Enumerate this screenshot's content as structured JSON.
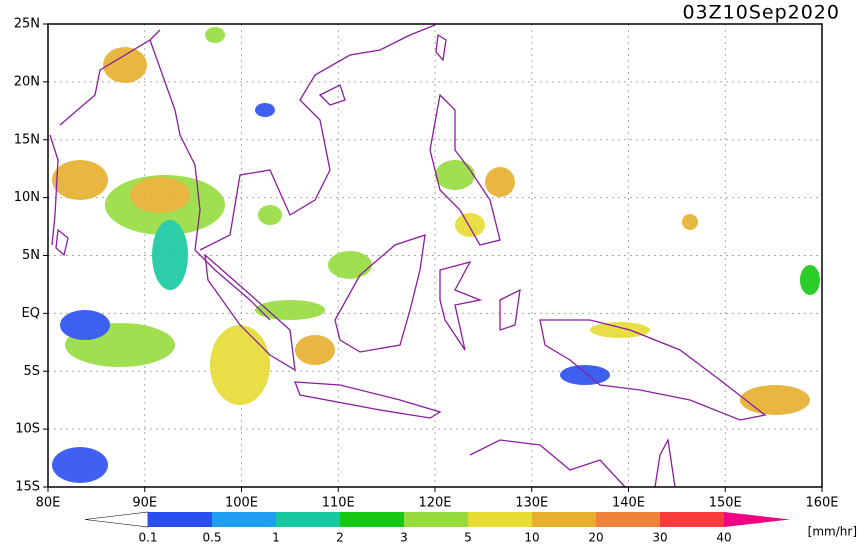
{
  "map": {
    "timestamp": "03Z10Sep2020",
    "x_axis": {
      "labels": [
        "80E",
        "90E",
        "100E",
        "110E",
        "120E",
        "130E",
        "140E",
        "150E",
        "160E"
      ]
    },
    "y_axis": {
      "labels": [
        "25N",
        "20N",
        "15N",
        "10N",
        "5N",
        "EQ",
        "5S",
        "10S",
        "15S"
      ]
    },
    "colorbar": {
      "levels": [
        0.1,
        0.5,
        1,
        2,
        3,
        5,
        10,
        20,
        30,
        40
      ],
      "colors": [
        "#ffffff",
        "#2a4ff0",
        "#1e9ff0",
        "#16c8a0",
        "#14c814",
        "#96dc3c",
        "#e6dc32",
        "#e6af2d",
        "#f0823c",
        "#fa3c3c",
        "#f00082"
      ],
      "unit": "[mm/hr]"
    }
  }
}
